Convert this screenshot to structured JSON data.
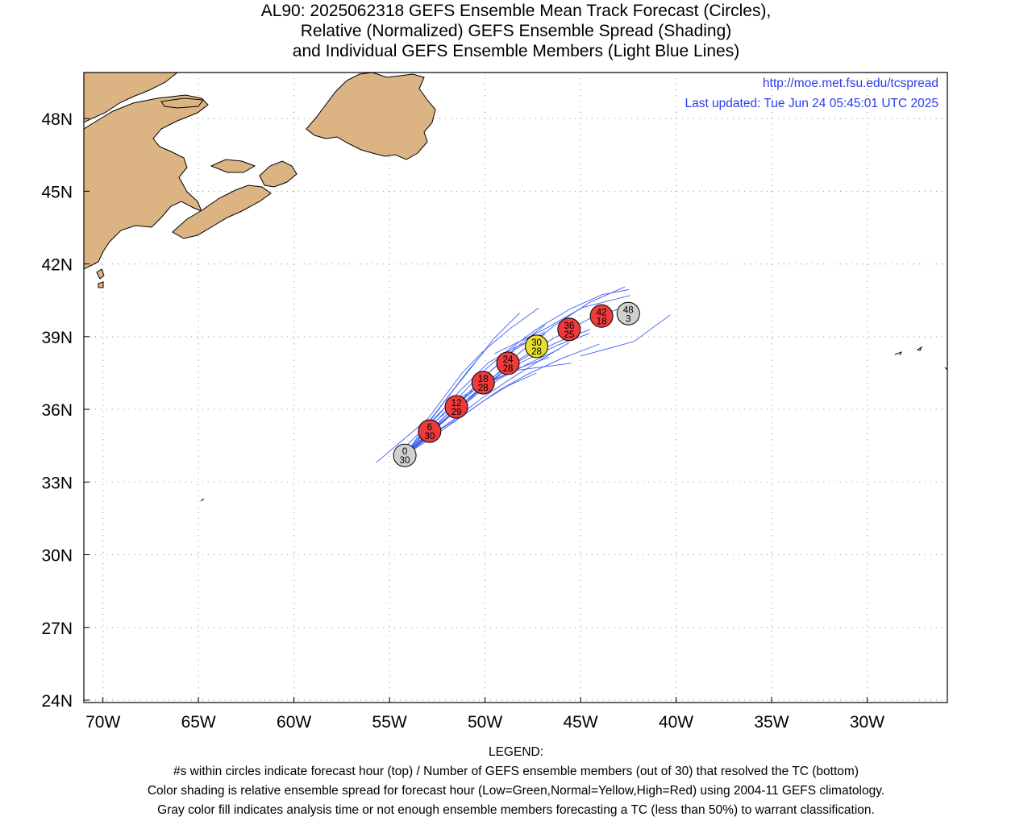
{
  "title": {
    "line1": "AL90: 2025062318 GEFS Ensemble Mean Track Forecast (Circles),",
    "line2": "Relative (Normalized) GEFS Ensemble Spread (Shading)",
    "line3": "and Individual GEFS Ensemble Members (Light Blue Lines)"
  },
  "map": {
    "url_text": "http://moe.met.fsu.edu/tcspread",
    "updated_text": "Last updated: Tue Jun 24 05:45:01 UTC 2025",
    "lon_range": [
      -71,
      -25.8
    ],
    "lat_range": [
      23.9,
      49.9
    ],
    "lon_ticks": [
      {
        "value": -70,
        "label": "70W"
      },
      {
        "value": -65,
        "label": "65W"
      },
      {
        "value": -60,
        "label": "60W"
      },
      {
        "value": -55,
        "label": "55W"
      },
      {
        "value": -50,
        "label": "50W"
      },
      {
        "value": -45,
        "label": "45W"
      },
      {
        "value": -40,
        "label": "40W"
      },
      {
        "value": -35,
        "label": "35W"
      },
      {
        "value": -30,
        "label": "30W"
      }
    ],
    "lat_ticks": [
      {
        "value": 24,
        "label": "24N"
      },
      {
        "value": 27,
        "label": "27N"
      },
      {
        "value": 30,
        "label": "30N"
      },
      {
        "value": 33,
        "label": "33N"
      },
      {
        "value": 36,
        "label": "36N"
      },
      {
        "value": 39,
        "label": "39N"
      },
      {
        "value": 42,
        "label": "42N"
      },
      {
        "value": 45,
        "label": "45N"
      },
      {
        "value": 48,
        "label": "48N"
      }
    ],
    "colors": {
      "land": "#dcb484",
      "member_track": "#4060ee",
      "text_blue": "#2a3cee",
      "grid": "#a0a0a0",
      "low": "#3cc83c",
      "normal": "#e6dc32",
      "high": "#ee3a3a",
      "gray": "#d0d0d0"
    }
  },
  "forecast_points": [
    {
      "hour": "0",
      "members": "30",
      "lon": -54.2,
      "lat": 34.1,
      "spread": "gray"
    },
    {
      "hour": "6",
      "members": "30",
      "lon": -52.9,
      "lat": 35.1,
      "spread": "high"
    },
    {
      "hour": "12",
      "members": "29",
      "lon": -51.5,
      "lat": 36.1,
      "spread": "high"
    },
    {
      "hour": "18",
      "members": "28",
      "lon": -50.1,
      "lat": 37.1,
      "spread": "high"
    },
    {
      "hour": "24",
      "members": "28",
      "lon": -48.8,
      "lat": 37.9,
      "spread": "high"
    },
    {
      "hour": "30",
      "members": "28",
      "lon": -47.3,
      "lat": 38.6,
      "spread": "normal"
    },
    {
      "hour": "36",
      "members": "25",
      "lon": -45.6,
      "lat": 39.3,
      "spread": "high"
    },
    {
      "hour": "42",
      "members": "18",
      "lon": -43.9,
      "lat": 39.85,
      "spread": "high"
    },
    {
      "hour": "48",
      "members": "3",
      "lon": -42.5,
      "lat": 39.95,
      "spread": "gray"
    }
  ],
  "legend": {
    "heading": "LEGEND:",
    "line1": "#s within circles indicate forecast hour (top) / Number of GEFS ensemble members (out of 30) that resolved the TC (bottom)",
    "line2": "Color shading is relative ensemble spread for forecast hour (Low=Green,Normal=Yellow,High=Red) using 2004-11 GEFS climatology.",
    "line3": "Gray color fill indicates analysis time or not enough ensemble members forecasting a TC (less than 50%) to warrant classification."
  }
}
